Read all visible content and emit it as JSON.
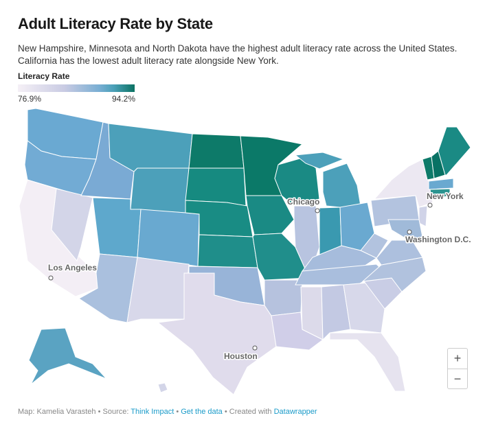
{
  "title": "Adult Literacy Rate by State",
  "description": "New Hampshire, Minnesota and North Dakota have the highest adult literacy rate across the United States. California has the lowest adult literacy rate alongside New York.",
  "legend": {
    "title": "Literacy Rate",
    "min": "76.9%",
    "max": "94.2%",
    "min_color": "#f5f0f6",
    "max_color": "#0b7262"
  },
  "states": [
    {
      "id": "WA",
      "color": "#6aa9d2"
    },
    {
      "id": "OR",
      "color": "#72abd4"
    },
    {
      "id": "CA",
      "color": "#f3eef5"
    },
    {
      "id": "NV",
      "color": "#d3d5e8"
    },
    {
      "id": "ID",
      "color": "#7aaad4"
    },
    {
      "id": "MT",
      "color": "#4ca0ba"
    },
    {
      "id": "WY",
      "color": "#4ca0ba"
    },
    {
      "id": "UT",
      "color": "#5ea8cc"
    },
    {
      "id": "AZ",
      "color": "#aac0de"
    },
    {
      "id": "CO",
      "color": "#69a9d0"
    },
    {
      "id": "NM",
      "color": "#d8d8ea"
    },
    {
      "id": "ND",
      "color": "#0d7a69"
    },
    {
      "id": "SD",
      "color": "#168a80"
    },
    {
      "id": "NE",
      "color": "#198c84"
    },
    {
      "id": "KS",
      "color": "#1f8e8a"
    },
    {
      "id": "OK",
      "color": "#98b4d8"
    },
    {
      "id": "TX",
      "color": "#e0dcec"
    },
    {
      "id": "MN",
      "color": "#0b7968"
    },
    {
      "id": "IA",
      "color": "#1a8a84"
    },
    {
      "id": "MO",
      "color": "#208e8b"
    },
    {
      "id": "AR",
      "color": "#b6c2de"
    },
    {
      "id": "LA",
      "color": "#d0cee8"
    },
    {
      "id": "WI",
      "color": "#1a8a84"
    },
    {
      "id": "IL",
      "color": "#b8c4e0"
    },
    {
      "id": "MI",
      "color": "#4ca0ba"
    },
    {
      "id": "MIU",
      "color": "#4ca0ba"
    },
    {
      "id": "IN",
      "color": "#3a99b0"
    },
    {
      "id": "OH",
      "color": "#6aa9d0"
    },
    {
      "id": "KY",
      "color": "#a6bcdc"
    },
    {
      "id": "TN",
      "color": "#a9bedd"
    },
    {
      "id": "MS",
      "color": "#dcdaea"
    },
    {
      "id": "AL",
      "color": "#c3c9e3"
    },
    {
      "id": "GA",
      "color": "#d7d8ea"
    },
    {
      "id": "FL",
      "color": "#e6e3ef"
    },
    {
      "id": "SC",
      "color": "#c9cde5"
    },
    {
      "id": "NC",
      "color": "#b1c2de"
    },
    {
      "id": "VA",
      "color": "#adc0de"
    },
    {
      "id": "WV",
      "color": "#b2c3df"
    },
    {
      "id": "PA",
      "color": "#b3c3df"
    },
    {
      "id": "NY",
      "color": "#ece8f2"
    },
    {
      "id": "VT",
      "color": "#0d7a69"
    },
    {
      "id": "NH",
      "color": "#087264"
    },
    {
      "id": "ME",
      "color": "#1a8a84"
    },
    {
      "id": "MA",
      "color": "#6aa9d0"
    },
    {
      "id": "CT",
      "color": "#2c9490"
    },
    {
      "id": "NJ",
      "color": "#d0d3e8"
    },
    {
      "id": "MD",
      "color": "#a0bad9"
    },
    {
      "id": "AK",
      "color": "#5aa3c2"
    },
    {
      "id": "HI",
      "color": "#d3d5e8"
    }
  ],
  "cities": {
    "chicago": "Chicago",
    "new_york": "New York",
    "washington": "Washington D.C.",
    "los_angeles": "Los Angeles",
    "houston": "Houston"
  },
  "zoom": {
    "in": "+",
    "out": "−"
  },
  "footer": {
    "map": "Map: Kamelia Varasteh",
    "source_label": "Source:",
    "source": "Think Impact",
    "get_data": "Get the data",
    "created": "Created with",
    "tool": "Datawrapper",
    "sep": "•"
  }
}
